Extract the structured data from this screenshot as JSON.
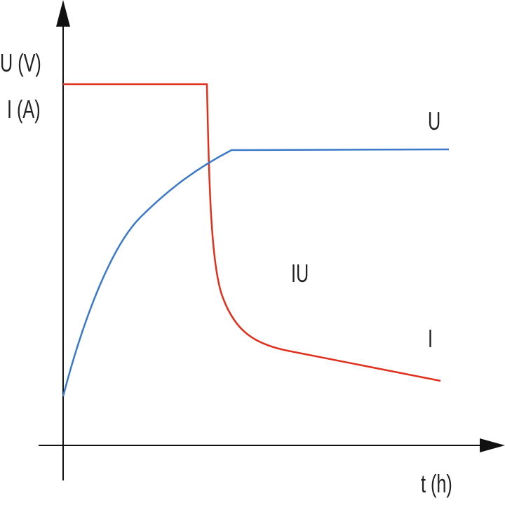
{
  "title": "",
  "axes": {
    "y_label_voltage": "U (V)",
    "y_label_current": "I (A)",
    "x_label": "t (h)"
  },
  "annotations": {
    "voltage_curve_label": "U",
    "characteristic_label": "IU",
    "current_curve_label": "I"
  },
  "colors": {
    "current": "#e0301e",
    "voltage": "#3a78c8",
    "axis": "#111111"
  }
}
